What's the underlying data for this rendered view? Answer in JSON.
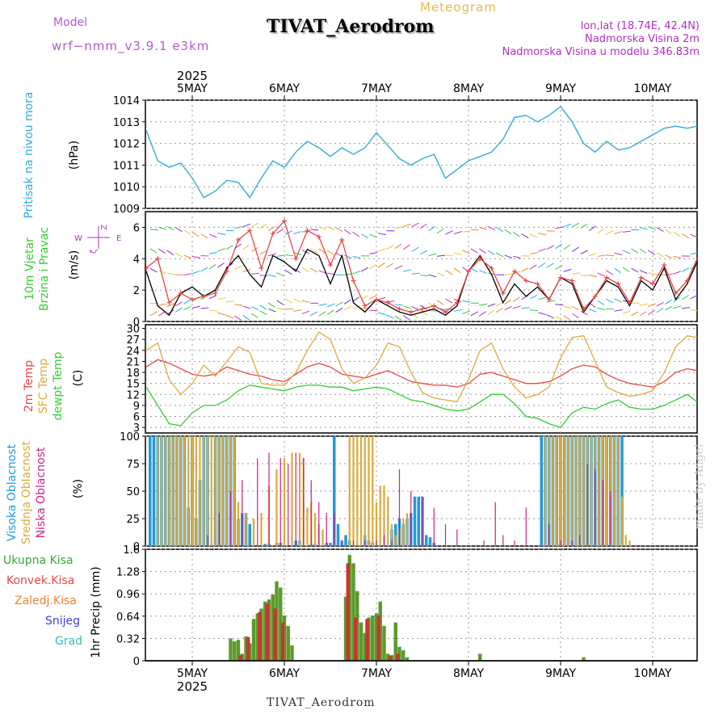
{
  "header": {
    "meteogram": "Meteogram",
    "title": "TIVAT_Aerodrom",
    "model_label": "Model",
    "model_name": "wrf−nmm_v3.9.1  e3km",
    "coords": "lon,lat (18.74E, 42.4N)",
    "altitude": "Nadmorska Visina 2m",
    "model_altitude": "Nadmorska Visina u modelu 346.83m"
  },
  "footer": {
    "station": "TIVAT_Aerodrom",
    "credit": "made by Angel"
  },
  "x_axis": {
    "year": "2025",
    "days": [
      "5MAY",
      "6MAY",
      "7MAY",
      "8MAY",
      "9MAY",
      "10MAY"
    ],
    "start_hour": 0,
    "end_hour": 144
  },
  "colors": {
    "pressure": "#33aadd",
    "t2m": "#e84848",
    "sfc": "#e0aa3c",
    "dew": "#33cc33",
    "high_cloud": "#2299dd",
    "mid_cloud": "#dcaa3a",
    "low_cloud": "#cc2288",
    "precip_total": "#5a9a2a",
    "precip_conv": "#cc3333"
  },
  "chart_data": [
    {
      "type": "line",
      "id": "pressure",
      "ylabel_side": "Pritisak na nivou mora",
      "ylabel_unit": "(hPa)",
      "ylim": [
        1009,
        1014
      ],
      "yticks": [
        1009,
        1010,
        1011,
        1012,
        1013,
        1014
      ],
      "x_hours": [
        0,
        3,
        6,
        9,
        12,
        15,
        18,
        21,
        24,
        27,
        30,
        33,
        36,
        39,
        42,
        45,
        48,
        51,
        54,
        57,
        60,
        63,
        66,
        69,
        72,
        75,
        78,
        81,
        84,
        87,
        90,
        93,
        96,
        99,
        102,
        105,
        108,
        111,
        114,
        117,
        120,
        123,
        126,
        129,
        132,
        135,
        138,
        141,
        144
      ],
      "values": [
        1012.6,
        1011.2,
        1010.9,
        1011.1,
        1010.4,
        1009.5,
        1009.8,
        1010.3,
        1010.2,
        1009.5,
        1010.4,
        1011.2,
        1010.9,
        1011.6,
        1012.1,
        1011.8,
        1011.4,
        1011.8,
        1011.5,
        1011.8,
        1012.5,
        1011.9,
        1011.3,
        1011.0,
        1011.3,
        1011.5,
        1010.4,
        1010.8,
        1011.2,
        1011.4,
        1011.6,
        1012.2,
        1013.2,
        1013.3,
        1013.0,
        1013.3,
        1013.7,
        1013.0,
        1012.0,
        1011.6,
        1012.1,
        1011.7,
        1011.8,
        1012.1,
        1012.4,
        1012.7,
        1012.8,
        1012.7,
        1012.8
      ]
    },
    {
      "type": "line",
      "id": "wind",
      "ylabel_side": [
        "10m Vjetar",
        "Brzina i Pravac"
      ],
      "ylabel_unit": "(m/s)",
      "compass": {
        "north": "Z",
        "east": "E",
        "west": "W",
        "south": "ζ"
      },
      "ylim": [
        0,
        7
      ],
      "yticks": [
        0,
        2,
        4,
        6
      ],
      "x_hours": [
        0,
        3,
        6,
        9,
        12,
        15,
        18,
        21,
        24,
        27,
        30,
        33,
        36,
        39,
        42,
        45,
        48,
        51,
        54,
        57,
        60,
        63,
        66,
        69,
        72,
        75,
        78,
        81,
        84,
        87,
        90,
        93,
        96,
        99,
        102,
        105,
        108,
        111,
        114,
        117,
        120,
        123,
        126,
        129,
        132,
        135,
        138,
        141,
        144
      ],
      "series": [
        {
          "name": "speed",
          "color": "#000000",
          "values": [
            3.2,
            1.0,
            0.4,
            1.8,
            2.2,
            1.6,
            2.0,
            3.4,
            4.2,
            3.0,
            2.2,
            4.2,
            3.8,
            3.2,
            4.6,
            4.2,
            2.4,
            4.2,
            1.2,
            0.6,
            1.4,
            1.0,
            0.6,
            0.4,
            0.6,
            0.8,
            0.4,
            1.0,
            3.2,
            4.2,
            3.0,
            1.2,
            2.4,
            1.6,
            2.2,
            1.4,
            2.8,
            2.4,
            0.6,
            1.6,
            2.6,
            2.2,
            1.0,
            2.6,
            2.0,
            3.4,
            1.4,
            2.4,
            3.8
          ]
        },
        {
          "name": "gust",
          "color": "#e84848",
          "values": [
            3.4,
            4.0,
            1.2,
            1.8,
            1.4,
            1.6,
            1.8,
            3.2,
            5.2,
            5.8,
            3.4,
            5.6,
            6.4,
            4.0,
            5.8,
            5.4,
            3.6,
            5.2,
            2.6,
            1.0,
            1.4,
            1.2,
            0.8,
            0.6,
            0.8,
            1.0,
            0.6,
            1.2,
            3.2,
            4.0,
            3.4,
            1.8,
            3.2,
            2.6,
            2.4,
            1.4,
            2.8,
            2.6,
            0.8,
            1.6,
            2.8,
            2.4,
            1.2,
            2.8,
            2.4,
            3.6,
            1.8,
            2.6,
            4.0
          ]
        }
      ]
    },
    {
      "type": "line",
      "id": "temperature",
      "ylabel_side": [
        "2m Temp",
        "SFC Temp",
        "dewpt Temp"
      ],
      "ylabel_unit": "(C)",
      "ylim": [
        1.5,
        31
      ],
      "yticks": [
        3,
        6,
        9,
        12,
        15,
        18,
        21,
        24,
        27,
        30
      ],
      "x_hours": [
        0,
        3,
        6,
        9,
        12,
        15,
        18,
        21,
        24,
        27,
        30,
        33,
        36,
        39,
        42,
        45,
        48,
        51,
        54,
        57,
        60,
        63,
        66,
        69,
        72,
        75,
        78,
        81,
        84,
        87,
        90,
        93,
        96,
        99,
        102,
        105,
        108,
        111,
        114,
        117,
        120,
        123,
        126,
        129,
        132,
        135,
        138,
        141,
        144
      ],
      "series": [
        {
          "name": "2m Temp",
          "color": "#e84848",
          "values": [
            19.5,
            21.5,
            20.5,
            19.0,
            17.5,
            17.0,
            17.5,
            19.5,
            18.5,
            17.5,
            17.0,
            16.0,
            15.5,
            17.5,
            19.5,
            20.5,
            19.5,
            17.5,
            17.0,
            16.5,
            17.5,
            18.5,
            17.0,
            15.5,
            15.0,
            14.5,
            14.5,
            14.0,
            15.0,
            17.5,
            18.0,
            17.0,
            16.0,
            15.0,
            15.0,
            15.5,
            17.0,
            19.0,
            20.0,
            19.5,
            17.5,
            16.0,
            15.0,
            14.5,
            14.0,
            15.5,
            18.0,
            19.0,
            18.5
          ]
        },
        {
          "name": "SFC Temp",
          "color": "#e0aa3c",
          "values": [
            24.0,
            26.0,
            16.0,
            12.0,
            15.0,
            20.0,
            17.0,
            21.0,
            25.0,
            23.5,
            15.0,
            14.5,
            14.5,
            18.0,
            24.0,
            29.0,
            27.0,
            19.0,
            15.0,
            16.5,
            20.0,
            26.0,
            25.0,
            18.0,
            12.5,
            11.0,
            10.5,
            10.0,
            16.0,
            24.0,
            26.0,
            19.0,
            14.0,
            11.0,
            12.0,
            14.0,
            22.0,
            27.5,
            28.0,
            21.0,
            14.0,
            12.5,
            11.5,
            12.0,
            13.0,
            18.0,
            25.0,
            28.0,
            27.5
          ]
        },
        {
          "name": "dewpt Temp",
          "color": "#33cc33",
          "values": [
            14.0,
            9.0,
            4.0,
            3.5,
            7.0,
            9.0,
            9.0,
            10.5,
            13.0,
            14.5,
            14.0,
            13.5,
            13.0,
            14.0,
            14.5,
            14.5,
            14.0,
            14.0,
            13.0,
            13.5,
            14.0,
            13.5,
            12.0,
            10.5,
            10.0,
            9.0,
            8.0,
            7.5,
            8.0,
            10.0,
            12.0,
            12.0,
            9.5,
            6.0,
            5.5,
            4.0,
            3.0,
            7.0,
            8.5,
            8.0,
            9.5,
            10.5,
            8.5,
            8.0,
            8.0,
            9.0,
            10.5,
            12.0,
            10.0
          ]
        }
      ]
    },
    {
      "type": "bar",
      "id": "clouds",
      "ylabel_side": [
        "Visoka Oblacnost",
        "Srednja Oblacnost",
        "Niska Oblacnost"
      ],
      "ylabel_unit": "(%)",
      "ylim": [
        0,
        100
      ],
      "yticks": [
        0,
        25,
        50,
        75,
        100
      ],
      "series": [
        {
          "name": "Visoka Oblacnost",
          "color": "#2299dd",
          "hours": [
            1,
            2,
            3,
            4,
            5,
            6,
            7,
            8,
            9,
            10,
            11,
            12,
            13,
            14,
            15,
            16,
            18,
            19,
            20,
            21,
            22,
            23,
            24,
            25,
            26,
            27,
            31,
            32,
            34,
            35,
            39,
            40,
            43,
            44,
            47,
            48,
            49,
            50,
            51,
            52,
            53,
            57,
            58,
            59,
            64,
            65,
            66,
            67,
            68,
            69,
            70,
            71,
            72,
            73,
            74,
            75,
            103,
            104,
            105,
            106,
            107,
            108,
            109,
            110,
            111,
            112,
            113,
            114,
            115,
            116,
            117,
            118,
            119,
            120,
            121,
            122,
            123,
            124
          ],
          "values": [
            100,
            100,
            100,
            100,
            100,
            100,
            100,
            100,
            100,
            100,
            35,
            100,
            25,
            60,
            100,
            100,
            100,
            100,
            100,
            100,
            100,
            100,
            25,
            30,
            30,
            20,
            2,
            2,
            3,
            3,
            5,
            5,
            2,
            2,
            3,
            3,
            100,
            20,
            5,
            10,
            5,
            10,
            5,
            3,
            15,
            20,
            25,
            20,
            25,
            30,
            45,
            45,
            45,
            10,
            8,
            3,
            100,
            100,
            100,
            100,
            100,
            100,
            100,
            100,
            100,
            100,
            100,
            100,
            100,
            100,
            100,
            100,
            100,
            100,
            100,
            100,
            100,
            100
          ]
        },
        {
          "name": "Srednja Oblacnost",
          "color": "#dcaa3a",
          "hours": [
            3,
            4,
            5,
            6,
            7,
            8,
            9,
            10,
            11,
            12,
            13,
            14,
            15,
            16,
            17,
            18,
            19,
            20,
            21,
            22,
            23,
            24,
            26,
            28,
            30,
            32,
            34,
            36,
            38,
            40,
            41,
            42,
            43,
            44,
            45,
            46,
            53,
            54,
            55,
            56,
            57,
            58,
            59,
            60,
            61,
            62,
            63,
            64,
            65,
            66,
            67,
            68,
            104,
            105,
            106,
            107,
            108,
            109,
            110,
            111,
            112,
            113,
            114,
            115,
            116,
            117,
            118,
            119,
            120,
            121,
            122,
            123,
            124,
            125,
            126
          ],
          "values": [
            100,
            100,
            100,
            100,
            100,
            100,
            100,
            100,
            100,
            100,
            100,
            100,
            100,
            100,
            100,
            100,
            100,
            100,
            100,
            100,
            100,
            40,
            30,
            25,
            30,
            55,
            70,
            80,
            85,
            85,
            80,
            35,
            40,
            30,
            20,
            15,
            100,
            100,
            100,
            100,
            100,
            100,
            100,
            40,
            55,
            55,
            45,
            20,
            10,
            15,
            25,
            30,
            100,
            100,
            100,
            100,
            100,
            100,
            100,
            100,
            100,
            100,
            100,
            100,
            100,
            100,
            100,
            100,
            100,
            100,
            100,
            100,
            45,
            10,
            5
          ]
        },
        {
          "name": "Niska Oblacnost",
          "color": "#cc2288",
          "hours": [
            16,
            19,
            22,
            25,
            29,
            32,
            35,
            37,
            39,
            41,
            43,
            45,
            47,
            49,
            51,
            54,
            57,
            60,
            62,
            64,
            66,
            69,
            72,
            75,
            78,
            81,
            88,
            91,
            93,
            96,
            99,
            105,
            108,
            111,
            113,
            115,
            117,
            119,
            121
          ],
          "values": [
            10,
            30,
            50,
            60,
            80,
            85,
            80,
            75,
            85,
            80,
            60,
            40,
            30,
            30,
            5,
            5,
            5,
            5,
            10,
            5,
            70,
            50,
            45,
            35,
            20,
            15,
            5,
            40,
            10,
            5,
            35,
            20,
            5,
            5,
            10,
            75,
            70,
            60,
            50
          ]
        }
      ]
    },
    {
      "type": "bar",
      "id": "precip",
      "ylabel_side": "1hr Precip (mm)",
      "legend": [
        "Ukupna Kisa",
        "Konvek.Kisa",
        "Zaledj.Kisa",
        "Snijeg",
        "Grad"
      ],
      "legend_colors": [
        "#33aa33",
        "#e84848",
        "#f08030",
        "#4040e0",
        "#33bbbb"
      ],
      "ylim": [
        0,
        1.6
      ],
      "yticks": [
        0,
        0.32,
        0.64,
        0.96,
        1.28,
        1.6
      ],
      "series": [
        {
          "name": "Ukupna Kisa",
          "color": "#5a9a2a",
          "hours": [
            22,
            23,
            24,
            25,
            26,
            27,
            28,
            29,
            30,
            31,
            32,
            33,
            34,
            35,
            36,
            37,
            38,
            52,
            53,
            54,
            55,
            56,
            57,
            58,
            59,
            60,
            61,
            62,
            63,
            64,
            65,
            66,
            67,
            68,
            87,
            114
          ],
          "values": [
            0.32,
            0.28,
            0.3,
            0.1,
            0.35,
            0.25,
            0.6,
            0.68,
            0.75,
            0.85,
            0.88,
            0.95,
            1.14,
            1.05,
            0.65,
            0.5,
            0.22,
            0.92,
            1.52,
            1.4,
            1.0,
            0.55,
            0.4,
            0.62,
            0.65,
            0.68,
            0.85,
            0.5,
            0.1,
            0.08,
            0.55,
            0.2,
            0.15,
            0.05,
            0.1,
            0.05
          ]
        },
        {
          "name": "Konvek.Kisa",
          "color": "#cc3333",
          "hours": [
            25,
            27,
            30,
            32,
            34,
            36,
            53,
            55,
            58,
            61,
            64,
            66
          ],
          "values": [
            0.08,
            0.34,
            0.7,
            0.82,
            0.75,
            0.55,
            1.4,
            0.62,
            0.6,
            0.65,
            0.07,
            0.1
          ]
        }
      ]
    }
  ]
}
